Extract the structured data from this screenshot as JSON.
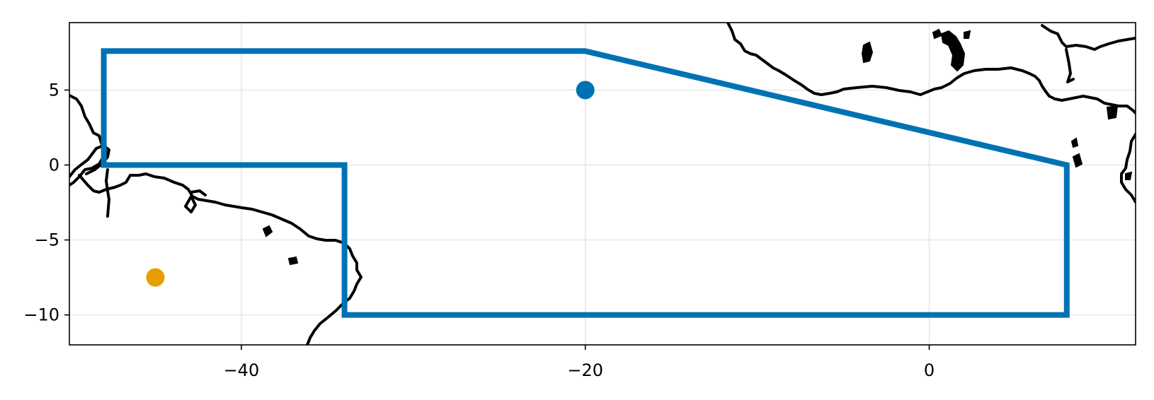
{
  "chart_data": {
    "type": "map",
    "xlim": [
      -50,
      12
    ],
    "ylim": [
      -12,
      9.5
    ],
    "x_ticks": [
      -40,
      -20,
      0
    ],
    "y_ticks": [
      5,
      0,
      -5,
      -10
    ],
    "x_tick_labels": [
      "−40",
      "−20",
      "0"
    ],
    "y_tick_labels": [
      "5",
      "0",
      "−5",
      "−10"
    ],
    "grid": true,
    "polygon": {
      "color": "#0072b2",
      "points": [
        [
          -48,
          7.6
        ],
        [
          -20,
          7.6
        ],
        [
          8,
          0
        ],
        [
          8,
          -10
        ],
        [
          -34,
          -10
        ],
        [
          -34,
          0
        ],
        [
          -48,
          0
        ],
        [
          -48,
          7.6
        ]
      ]
    },
    "points": [
      {
        "x": -20,
        "y": 5,
        "color": "#0072b2"
      },
      {
        "x": -45,
        "y": -7.5,
        "color": "#e69f00"
      }
    ],
    "coastline_color": "#000000"
  }
}
